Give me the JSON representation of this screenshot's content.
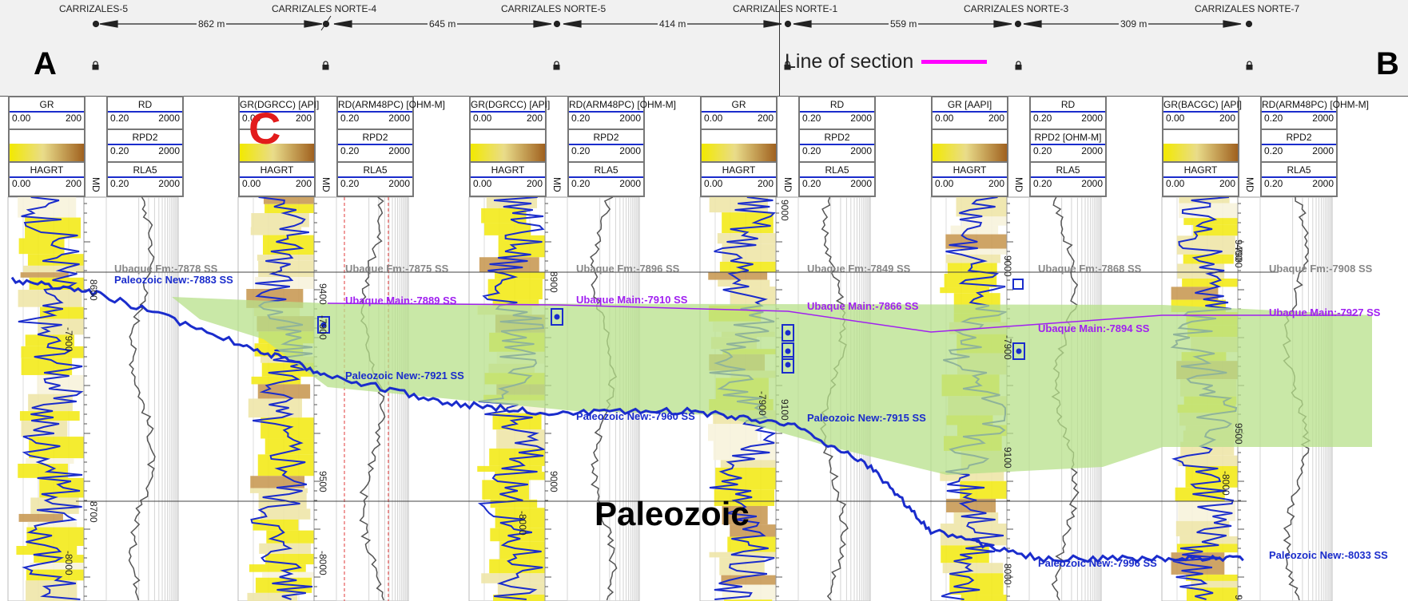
{
  "panel": {
    "left_letter": "A",
    "right_letter": "B",
    "marker_letter": "C"
  },
  "wells": [
    {
      "name": "CARRIZALES-5"
    },
    {
      "name": "CARRIZALES NORTE-4"
    },
    {
      "name": "CARRIZALES NORTE-5"
    },
    {
      "name": "CARRIZALES NORTE-1"
    },
    {
      "name": "CARRIZALES NORTE-3"
    },
    {
      "name": "CARRIZALES NORTE-7"
    }
  ],
  "distances": [
    "862 m",
    "645 m",
    "414 m",
    "559 m",
    "309 m"
  ],
  "legend": {
    "label": "Line of section",
    "color": "#ff00ff"
  },
  "tracks": [
    {
      "gr": "GR",
      "hag": "HAGRT",
      "rd": "RD",
      "rpd": "RPD2",
      "rla": "RLA5",
      "md": "MD"
    },
    {
      "gr": "GR(DGRCC) [API]",
      "hag": "HAGRT",
      "rd": "RD(ARM48PC) [OHM-M]",
      "rpd": "RPD2",
      "rla": "RLA5",
      "md": "MD"
    },
    {
      "gr": "GR(DGRCC) [API]",
      "hag": "HAGRT",
      "rd": "RD(ARM48PC) [OHM-M]",
      "rpd": "RPD2",
      "rla": "RLA5",
      "md": "MD"
    },
    {
      "gr": "GR",
      "hag": "HAGRT",
      "rd": "RD",
      "rpd": "RPD2",
      "rla": "RLA5",
      "md": "MD"
    },
    {
      "gr": "GR [AAPI]",
      "hag": "HAGRT",
      "rd": "RD",
      "rpd": "RPD2 [OHM-M]",
      "rla": "RLA5",
      "md": "MD"
    },
    {
      "gr": "GR(BACGC) [API]",
      "hag": "HAGRT",
      "rd": "RD(ARM48PC) [OHM-M]",
      "rpd": "RPD2",
      "rla": "RLA5",
      "md": "MD"
    }
  ],
  "scales": {
    "gr_min": "0.00",
    "gr_max": "200",
    "res_min": "0.20",
    "res_max": "2000"
  },
  "tops": {
    "ubaque_fm": [
      "Ubaque Fm:-7878 SS",
      "Ubaque Fm:-7875 SS",
      "Ubaque Fm:-7896 SS",
      "Ubaque Fm:-7849 SS",
      "Ubaque Fm:-7868 SS",
      "Ubaque Fm:-7908 SS"
    ],
    "ubaque_main": [
      "Ubaque Main:-7889 SS",
      "Ubaque Main:-7910 SS",
      "Ubaque Main:-7866 SS",
      "Ubaque Main:-7894 SS",
      "Ubaque Main:-7927 SS"
    ],
    "paleozoic": [
      "Paleozoic New:-7883 SS",
      "Paleozoic New:-7921 SS",
      "Paleozoic New:-7960 SS",
      "Paleozoic New:-7915 SS",
      "Paleozoic New:-7996 SS",
      "Paleozoic New:-8033 SS"
    ]
  },
  "depth_labels": [
    "8600",
    "-7900",
    "8700",
    "-8000",
    "9400",
    "-7900",
    "9500",
    "-8000",
    "8900",
    "9000",
    "-8000",
    "9000",
    "-7900",
    "9100",
    "9000",
    "-7900",
    "9100",
    "8000",
    "9400",
    "-7900",
    "9500",
    "-8000",
    "9"
  ],
  "section_label": "Paleozoic",
  "colors": {
    "gr_curve": "#1a2ccc",
    "top_grey": "#888888",
    "ubaque_main": "#a020f0",
    "paleozoic_line": "#1a2ccc",
    "zone_fill": "#b7e08a"
  }
}
